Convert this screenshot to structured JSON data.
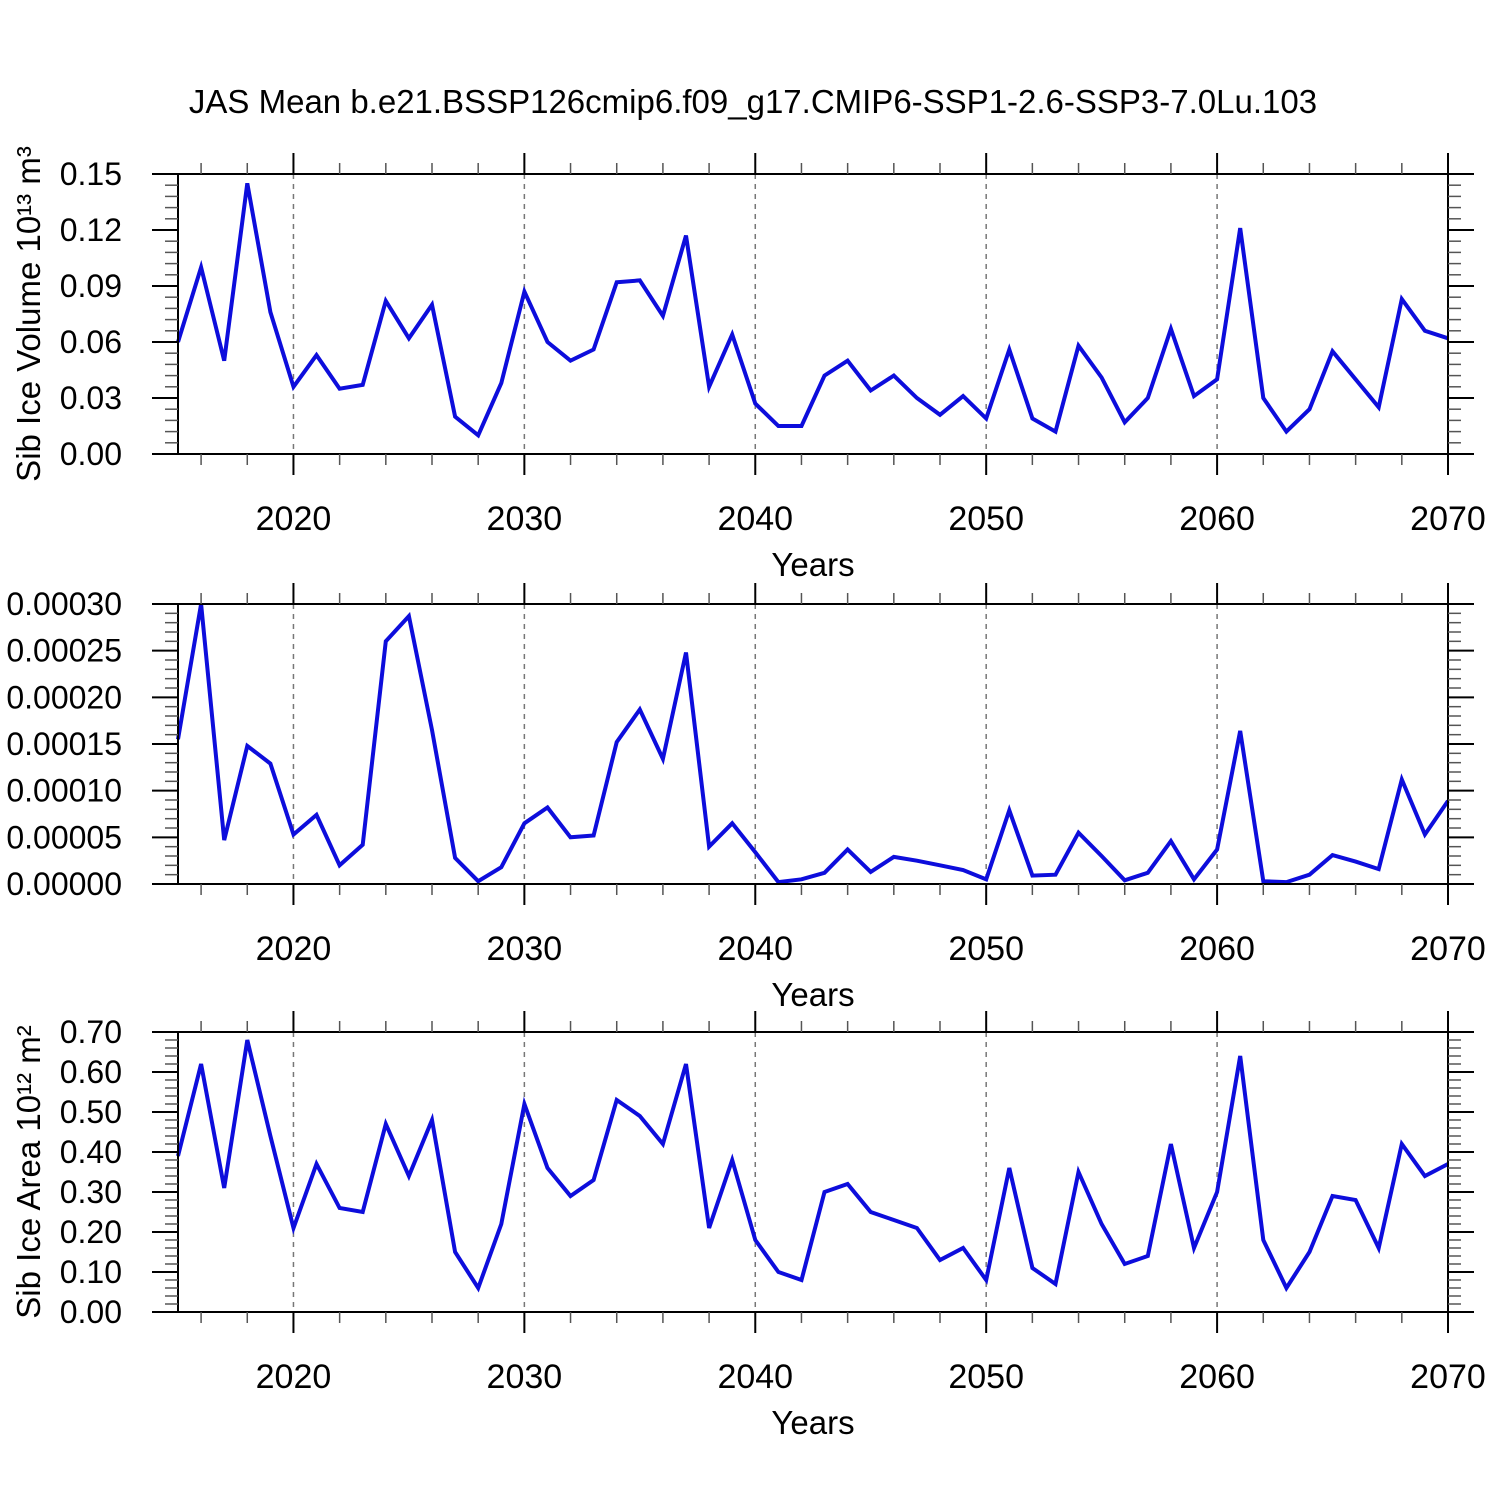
{
  "title": "JAS Mean b.e21.BSSP126cmip6.f09_g17.CMIP6-SSP1-2.6-SSP3-7.0Lu.103",
  "style": {
    "line_color": "#0d0ddc",
    "axis_color": "#000000",
    "gridline_color": "#777777",
    "minor_tick_color": "#555555"
  },
  "x_axis": {
    "label": "Years",
    "range": [
      2015,
      2070
    ],
    "tick_labels": [
      "2020",
      "2030",
      "2040",
      "2050",
      "2060",
      "2070"
    ],
    "tick_values": [
      2020,
      2030,
      2040,
      2050,
      2060,
      2070
    ],
    "minor_tick_step": 2,
    "gridline_years": [
      2020,
      2030,
      2040,
      2050,
      2060
    ],
    "years": [
      2015,
      2016,
      2017,
      2018,
      2019,
      2020,
      2021,
      2022,
      2023,
      2024,
      2025,
      2026,
      2027,
      2028,
      2029,
      2030,
      2031,
      2032,
      2033,
      2034,
      2035,
      2036,
      2037,
      2038,
      2039,
      2040,
      2041,
      2042,
      2043,
      2044,
      2045,
      2046,
      2047,
      2048,
      2049,
      2050,
      2051,
      2052,
      2053,
      2054,
      2055,
      2056,
      2057,
      2058,
      2059,
      2060,
      2061,
      2062,
      2063,
      2064,
      2065,
      2066,
      2067,
      2068,
      2069,
      2070
    ]
  },
  "chart_data": [
    {
      "type": "line",
      "name": "sib-ice-volume",
      "ylabel": "Sib Ice Volume 10¹³ m³",
      "xlabel": "Years",
      "ylim": [
        0,
        0.15
      ],
      "ytick_labels": [
        "0.00",
        "0.03",
        "0.06",
        "0.09",
        "0.12",
        "0.15"
      ],
      "ytick_values": [
        0,
        0.03,
        0.06,
        0.09,
        0.12,
        0.15
      ],
      "y_minor_step": 0.006,
      "grid": "dashed-decade-verticals",
      "legend": "none",
      "values": [
        0.06,
        0.1,
        0.05,
        0.145,
        0.076,
        0.036,
        0.053,
        0.035,
        0.037,
        0.082,
        0.062,
        0.08,
        0.02,
        0.01,
        0.038,
        0.087,
        0.06,
        0.05,
        0.056,
        0.092,
        0.093,
        0.074,
        0.117,
        0.036,
        0.064,
        0.027,
        0.015,
        0.015,
        0.042,
        0.05,
        0.034,
        0.042,
        0.03,
        0.021,
        0.031,
        0.019,
        0.056,
        0.019,
        0.012,
        0.058,
        0.041,
        0.017,
        0.03,
        0.067,
        0.031,
        0.04,
        0.121,
        0.03,
        0.012,
        0.024,
        0.055,
        0.04,
        0.025,
        0.083,
        0.066,
        0.062
      ]
    },
    {
      "type": "line",
      "name": "middle-series",
      "ylabel": "",
      "xlabel": "Years",
      "ylim": [
        0,
        0.0003
      ],
      "ytick_labels": [
        "0.00000",
        "0.00005",
        "0.00010",
        "0.00015",
        "0.00020",
        "0.00025",
        "0.00030"
      ],
      "ytick_values": [
        0,
        5e-05,
        0.0001,
        0.00015,
        0.0002,
        0.00025,
        0.0003
      ],
      "y_minor_step": 1e-05,
      "grid": "dashed-decade-verticals",
      "legend": "none",
      "values": [
        0.000155,
        0.0003,
        4.7e-05,
        0.000148,
        0.000129,
        5.3e-05,
        7.4e-05,
        2e-05,
        4.2e-05,
        0.00026,
        0.000287,
        0.000165,
        2.8e-05,
        3e-06,
        1.8e-05,
        6.5e-05,
        8.2e-05,
        5e-05,
        5.2e-05,
        0.000152,
        0.000187,
        0.000134,
        0.000248,
        4e-05,
        6.5e-05,
        3.4e-05,
        2e-06,
        5e-06,
        1.2e-05,
        3.7e-05,
        1.3e-05,
        2.9e-05,
        2.5e-05,
        2e-05,
        1.5e-05,
        5e-06,
        7.9e-05,
        9e-06,
        1e-05,
        5.5e-05,
        3e-05,
        4e-06,
        1.2e-05,
        4.6e-05,
        5e-06,
        3.7e-05,
        0.000164,
        3e-06,
        2e-06,
        1e-05,
        3.1e-05,
        2.4e-05,
        1.6e-05,
        0.000112,
        5.3e-05,
        8.9e-05
      ]
    },
    {
      "type": "line",
      "name": "sib-ice-area",
      "ylabel": "Sib Ice Area 10¹² m²",
      "xlabel": "Years",
      "ylim": [
        0,
        0.7
      ],
      "ytick_labels": [
        "0.00",
        "0.10",
        "0.20",
        "0.30",
        "0.40",
        "0.50",
        "0.60",
        "0.70"
      ],
      "ytick_values": [
        0,
        0.1,
        0.2,
        0.3,
        0.4,
        0.5,
        0.6,
        0.7
      ],
      "y_minor_step": 0.02,
      "grid": "dashed-decade-verticals",
      "legend": "none",
      "values": [
        0.39,
        0.62,
        0.31,
        0.68,
        0.44,
        0.21,
        0.37,
        0.26,
        0.25,
        0.47,
        0.34,
        0.48,
        0.15,
        0.06,
        0.22,
        0.52,
        0.36,
        0.29,
        0.33,
        0.53,
        0.49,
        0.42,
        0.62,
        0.21,
        0.38,
        0.18,
        0.1,
        0.08,
        0.3,
        0.32,
        0.25,
        0.23,
        0.21,
        0.13,
        0.16,
        0.08,
        0.36,
        0.11,
        0.07,
        0.35,
        0.22,
        0.12,
        0.14,
        0.42,
        0.16,
        0.3,
        0.64,
        0.18,
        0.06,
        0.15,
        0.29,
        0.28,
        0.16,
        0.42,
        0.34,
        0.37
      ]
    }
  ]
}
